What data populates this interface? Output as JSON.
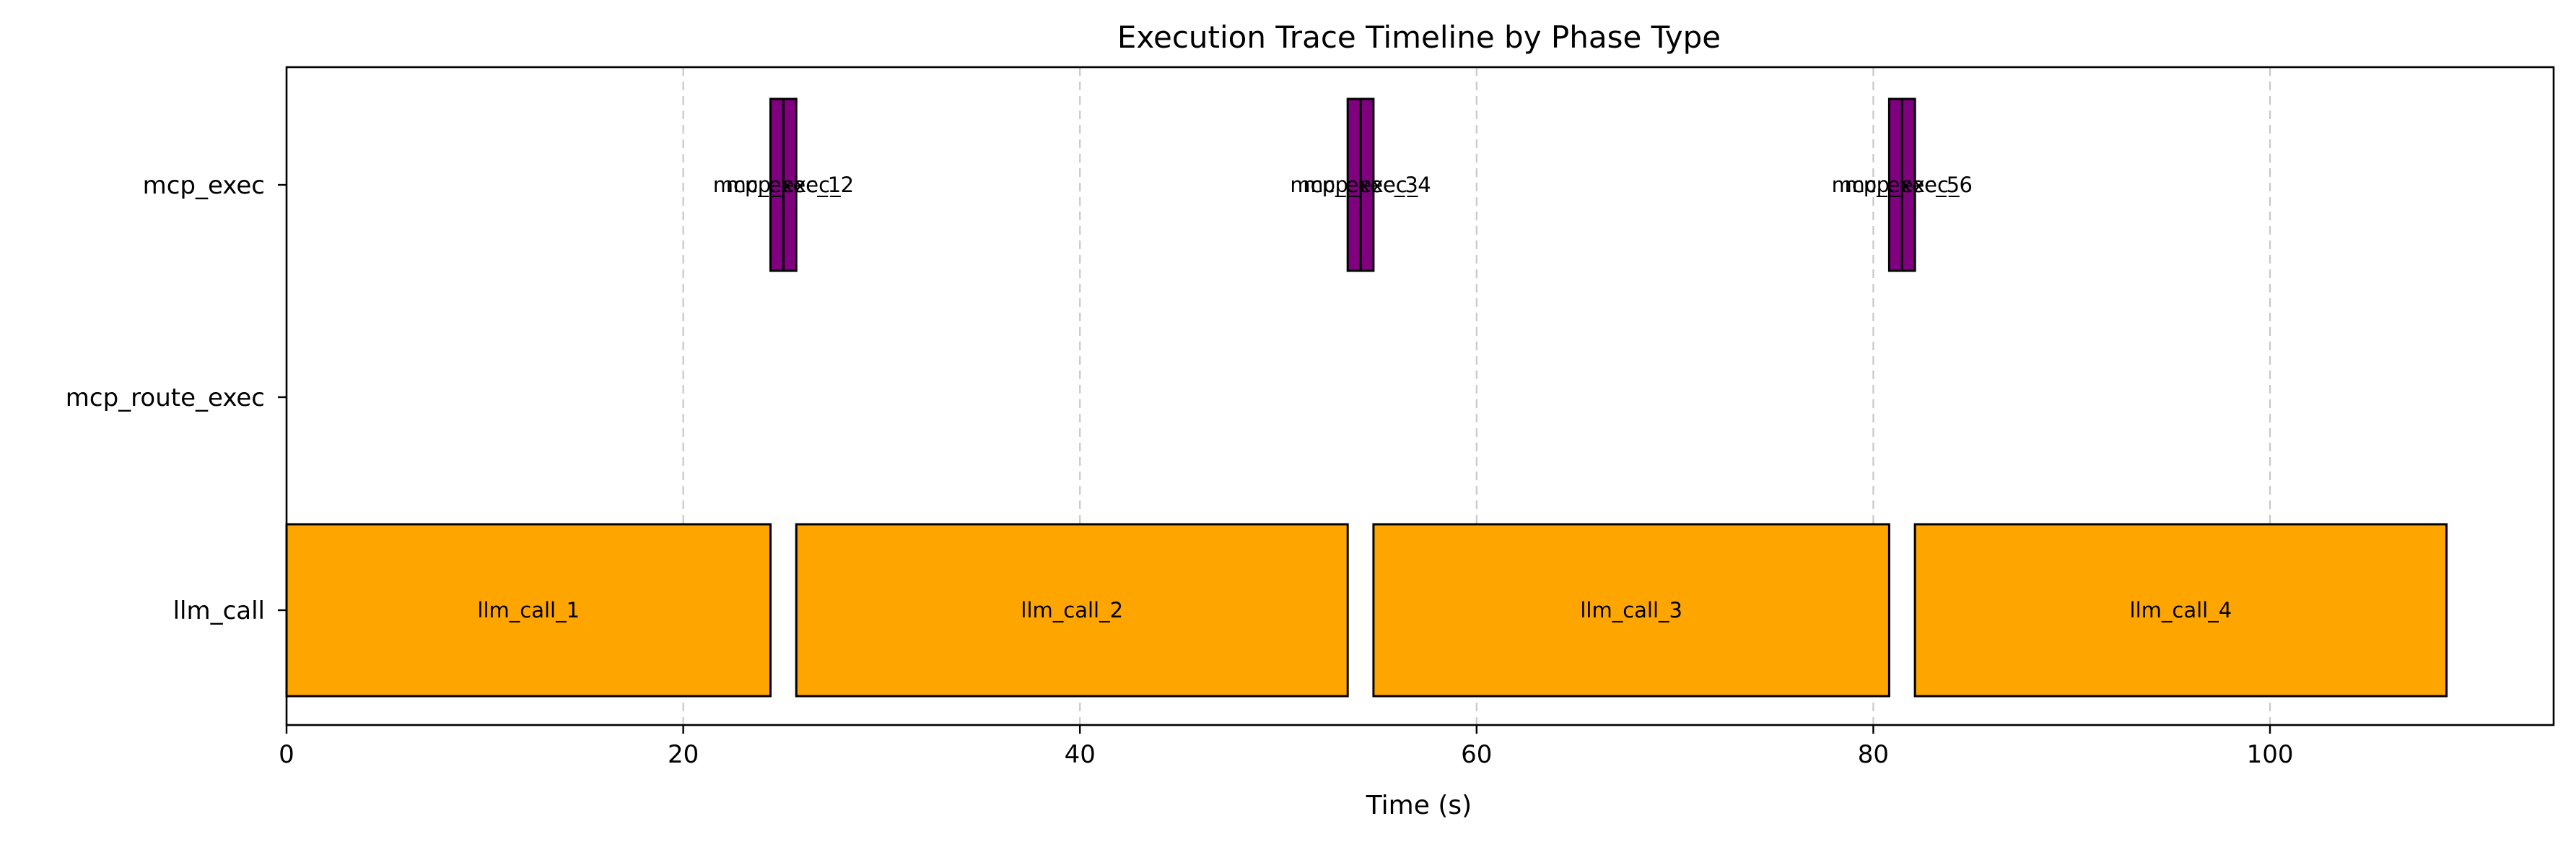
{
  "chart_data": {
    "type": "bar",
    "subtype": "horizontal-timeline",
    "title": "Execution Trace Timeline by Phase Type",
    "xlabel": "Time (s)",
    "ylabel": "",
    "xlim": [
      0,
      114.3
    ],
    "xticks": [
      "0",
      "20",
      "40",
      "60",
      "80",
      "100"
    ],
    "grid": "x-dashed",
    "categories": [
      "mcp_exec",
      "mcp_route_exec",
      "llm_call"
    ],
    "colors": {
      "llm_call": "#FFA500",
      "mcp_exec": "#800080"
    },
    "segments": [
      {
        "category": "llm_call",
        "label": "llm_call_1",
        "start": 0.0,
        "end": 24.4
      },
      {
        "category": "llm_call",
        "label": "llm_call_2",
        "start": 25.7,
        "end": 53.5
      },
      {
        "category": "llm_call",
        "label": "llm_call_3",
        "start": 54.8,
        "end": 80.8
      },
      {
        "category": "llm_call",
        "label": "llm_call_4",
        "start": 82.1,
        "end": 108.9
      },
      {
        "category": "mcp_exec",
        "label": "mcp_exec_1",
        "start": 24.4,
        "end": 25.05
      },
      {
        "category": "mcp_exec",
        "label": "mcp_exec_2",
        "start": 25.05,
        "end": 25.7
      },
      {
        "category": "mcp_exec",
        "label": "mcp_exec_3",
        "start": 53.5,
        "end": 54.15
      },
      {
        "category": "mcp_exec",
        "label": "mcp_exec_4",
        "start": 54.15,
        "end": 54.8
      },
      {
        "category": "mcp_exec",
        "label": "mcp_exec_5",
        "start": 80.8,
        "end": 81.45
      },
      {
        "category": "mcp_exec",
        "label": "mcp_exec_6",
        "start": 81.45,
        "end": 82.1
      }
    ]
  }
}
